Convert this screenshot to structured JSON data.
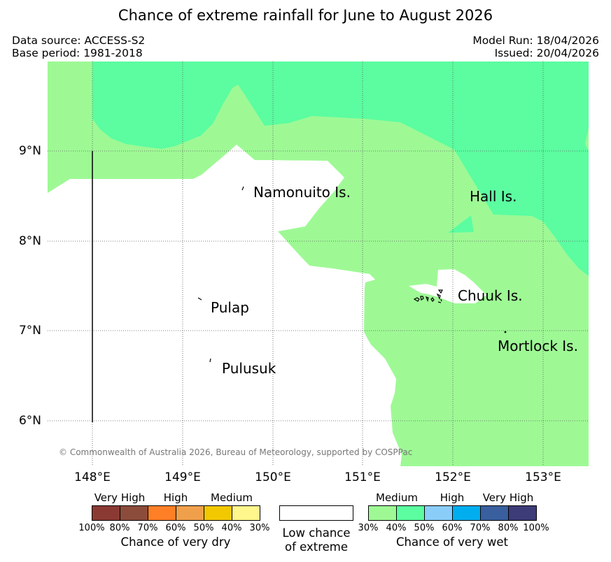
{
  "title": "Chance of extreme rainfall for June to August 2026",
  "data_source": "Data source: ACCESS-S2",
  "base_period": "Base period: 1981-2018",
  "model_run": "Model Run: 18/04/2026",
  "issued": "Issued: 20/04/2026",
  "copyright": "© Commonwealth of Australia 2026, Bureau of Meteorology, supported by COSPPac",
  "map": {
    "lat_ticks": [
      "9°N",
      "8°N",
      "7°N",
      "6°N"
    ],
    "lon_ticks": [
      "148°E",
      "149°E",
      "150°E",
      "151°E",
      "152°E",
      "153°E"
    ],
    "places": {
      "namonuito": "Namonuito Is.",
      "hall": "Hall Is.",
      "chuuk": "Chuuk Is.",
      "pulap": "Pulap",
      "mortlock": "Mortlock Is.",
      "pulusuk": "Pulusuk"
    },
    "colors": {
      "wet_30_40": "#9ef995",
      "wet_40_50": "#5bfda0",
      "grid": "#555555"
    }
  },
  "legend": {
    "dry": {
      "categories": [
        "Very High",
        "High",
        "Medium"
      ],
      "percent_labels": [
        "100%",
        "80%",
        "70%",
        "60%",
        "50%",
        "40%",
        "30%"
      ],
      "colors": [
        "#8b3a33",
        "#8c4c3c",
        "#ff7f27",
        "#f0a04b",
        "#f2c800",
        "#fff68c"
      ],
      "caption": "Chance of very dry"
    },
    "low": {
      "caption_line1": "Low chance",
      "caption_line2": "of extreme"
    },
    "wet": {
      "categories": [
        "Medium",
        "High",
        "Very High"
      ],
      "percent_labels": [
        "30%",
        "40%",
        "50%",
        "60%",
        "70%",
        "80%",
        "100%"
      ],
      "colors": [
        "#9ef995",
        "#5bfda0",
        "#8bcdf9",
        "#00aeef",
        "#3a5f9e",
        "#3d3b78"
      ],
      "caption": "Chance of very wet"
    }
  }
}
